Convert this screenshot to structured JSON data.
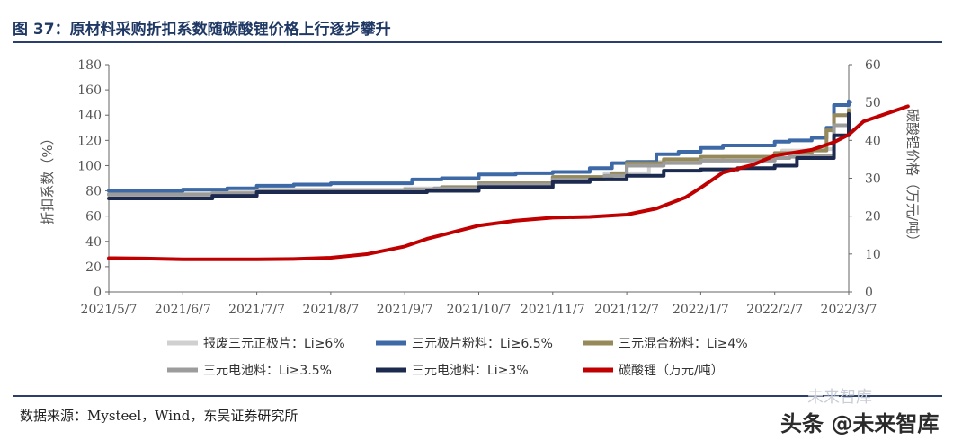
{
  "header": {
    "title": "图 37：原材料采购折扣系数随碳酸锂价格上行逐步攀升"
  },
  "footer": {
    "source": "数据来源：Mysteel，Wind，东吴证券研究所"
  },
  "watermark": {
    "small": "未来智库",
    "large": "头条 @未来智库"
  },
  "chart_data": {
    "type": "line",
    "ylabel": "折扣系数（%）",
    "y2label": "碳酸锂价格（万元/吨）",
    "ylim": [
      0,
      180
    ],
    "y2lim": [
      0,
      60
    ],
    "yticks": [
      "0",
      "20",
      "40",
      "60",
      "80",
      "100",
      "120",
      "140",
      "160",
      "180"
    ],
    "y2ticks": [
      "0",
      "10",
      "20",
      "30",
      "40",
      "50",
      "60"
    ],
    "xticks": [
      "2021/5/7",
      "2021/6/7",
      "2021/7/7",
      "2021/8/7",
      "2021/9/7",
      "2021/10/7",
      "2021/11/7",
      "2021/12/7",
      "2022/1/7",
      "2022/2/7",
      "2022/3/7"
    ],
    "legend_position": "bottom",
    "grid": false,
    "series": [
      {
        "name": "报废三元正极片：Li≥6%",
        "axis": "left",
        "color": "#d0d0d0",
        "points": [
          [
            0,
            78
          ],
          [
            1,
            78
          ],
          [
            1.4,
            79
          ],
          [
            2,
            81
          ],
          [
            3,
            81
          ],
          [
            4,
            82
          ],
          [
            5,
            86
          ],
          [
            6,
            91
          ],
          [
            6.7,
            94
          ],
          [
            7.3,
            103
          ],
          [
            8,
            104
          ],
          [
            8.3,
            107
          ],
          [
            9,
            107
          ],
          [
            9.1,
            112
          ],
          [
            9.6,
            113
          ],
          [
            9.8,
            140
          ],
          [
            10,
            146
          ]
        ]
      },
      {
        "name": "三元极片粉料：Li≥6.5%",
        "axis": "left",
        "color": "#3d6aa6",
        "points": [
          [
            0,
            80
          ],
          [
            1,
            81
          ],
          [
            1.4,
            81
          ],
          [
            1.6,
            82
          ],
          [
            2,
            84
          ],
          [
            2.5,
            85
          ],
          [
            3,
            86
          ],
          [
            4,
            86
          ],
          [
            4.1,
            89
          ],
          [
            4.5,
            90
          ],
          [
            5,
            93
          ],
          [
            5.5,
            94
          ],
          [
            6,
            95
          ],
          [
            6.5,
            98
          ],
          [
            6.8,
            102
          ],
          [
            7,
            103
          ],
          [
            7.4,
            109
          ],
          [
            7.7,
            111
          ],
          [
            8,
            114
          ],
          [
            8.3,
            116
          ],
          [
            9,
            119
          ],
          [
            9.2,
            120
          ],
          [
            9.5,
            122
          ],
          [
            9.7,
            130
          ],
          [
            9.8,
            148
          ],
          [
            10,
            151
          ]
        ]
      },
      {
        "name": "三元混合粉料：Li≥4%",
        "axis": "left",
        "color": "#968a5a",
        "points": [
          [
            0,
            77
          ],
          [
            1,
            77
          ],
          [
            1.4,
            78
          ],
          [
            2,
            80
          ],
          [
            3,
            80
          ],
          [
            4,
            81
          ],
          [
            4.5,
            83
          ],
          [
            5,
            86
          ],
          [
            6,
            91
          ],
          [
            6.8,
            94
          ],
          [
            7,
            102
          ],
          [
            7.5,
            105
          ],
          [
            8,
            107
          ],
          [
            9,
            110
          ],
          [
            9.5,
            112
          ],
          [
            9.7,
            128
          ],
          [
            9.8,
            140
          ],
          [
            10,
            144
          ]
        ]
      },
      {
        "name": "三元电池料：Li≥3.5%",
        "axis": "left",
        "color": "#9c9c9c",
        "points": [
          [
            0,
            77
          ],
          [
            1,
            77
          ],
          [
            1.4,
            78
          ],
          [
            2,
            80
          ],
          [
            3,
            80
          ],
          [
            4,
            81
          ],
          [
            4.4,
            82
          ],
          [
            5,
            85
          ],
          [
            6,
            89
          ],
          [
            6.7,
            92
          ],
          [
            7,
            100
          ],
          [
            7.5,
            102
          ],
          [
            8,
            104
          ],
          [
            9,
            106
          ],
          [
            9.2,
            107
          ],
          [
            9.5,
            108
          ],
          [
            9.8,
            132
          ],
          [
            10,
            140
          ]
        ]
      },
      {
        "name": "三元电池料：Li≥3%",
        "axis": "left",
        "color": "#1b2a4e",
        "points": [
          [
            0,
            74
          ],
          [
            1,
            74
          ],
          [
            1.4,
            76
          ],
          [
            2,
            79
          ],
          [
            3,
            79
          ],
          [
            4,
            79
          ],
          [
            4.3,
            80
          ],
          [
            5,
            83
          ],
          [
            6,
            87
          ],
          [
            6.5,
            89
          ],
          [
            7,
            92
          ],
          [
            7.5,
            96
          ],
          [
            8,
            97
          ],
          [
            8.5,
            98
          ],
          [
            9,
            100
          ],
          [
            9.3,
            106
          ],
          [
            9.5,
            106
          ],
          [
            9.8,
            124
          ],
          [
            10,
            141
          ]
        ]
      },
      {
        "name": "碳酸锂（万元/吨）",
        "axis": "right",
        "color": "#c00000",
        "points": [
          [
            0,
            8.9
          ],
          [
            0.5,
            8.8
          ],
          [
            1,
            8.6
          ],
          [
            2,
            8.6
          ],
          [
            2.5,
            8.7
          ],
          [
            3,
            9.0
          ],
          [
            3.5,
            10.0
          ],
          [
            4,
            12.0
          ],
          [
            4.3,
            14.0
          ],
          [
            4.6,
            15.5
          ],
          [
            5,
            17.5
          ],
          [
            5.5,
            18.8
          ],
          [
            6,
            19.6
          ],
          [
            6.5,
            19.8
          ],
          [
            7,
            20.4
          ],
          [
            7.4,
            22.0
          ],
          [
            7.8,
            25.0
          ],
          [
            8,
            27.5
          ],
          [
            8.3,
            31.5
          ],
          [
            8.7,
            33.5
          ],
          [
            9,
            36.0
          ],
          [
            9.5,
            37.5
          ],
          [
            9.8,
            39.5
          ],
          [
            10,
            41.5
          ],
          [
            10.2,
            45.0
          ],
          [
            10.5,
            47.0
          ],
          [
            10.8,
            49.0
          ]
        ]
      }
    ]
  }
}
